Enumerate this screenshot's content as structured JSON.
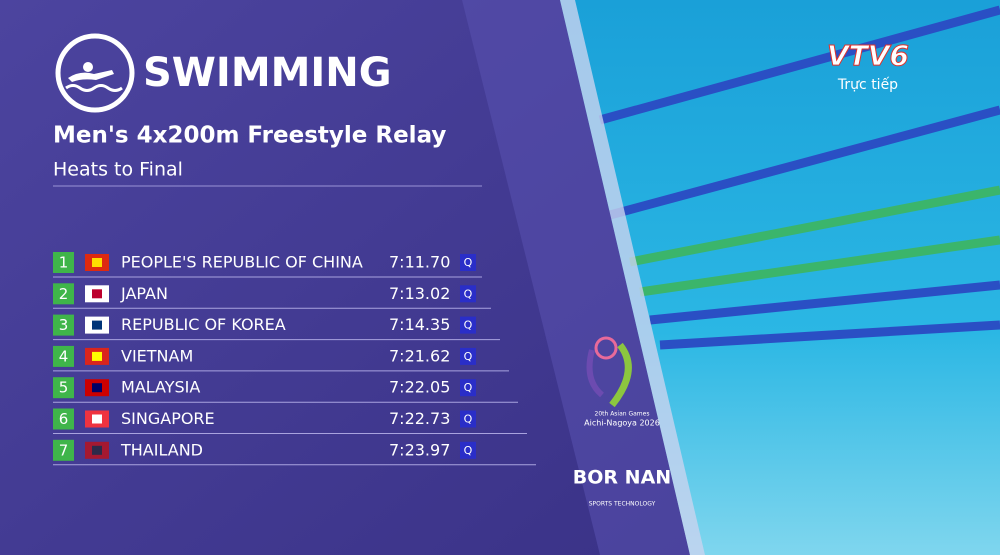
{
  "header": {
    "sport": "SWIMMING",
    "event": "Men's 4x200m Freestyle Relay",
    "phase": "Heats to Final"
  },
  "results": [
    {
      "rank": 1,
      "country": "PEOPLE'S REPUBLIC OF CHINA",
      "time": "7:11.70",
      "qualification": "Q"
    },
    {
      "rank": 2,
      "country": "JAPAN",
      "time": "7:13.02",
      "qualification": "Q"
    },
    {
      "rank": 3,
      "country": "REPUBLIC OF KOREA",
      "time": "7:14.35",
      "qualification": "Q"
    },
    {
      "rank": 4,
      "country": "VIETNAM",
      "time": "7:21.62",
      "qualification": "Q"
    },
    {
      "rank": 5,
      "country": "MALAYSIA",
      "time": "7:22.05",
      "qualification": "Q"
    },
    {
      "rank": 6,
      "country": "SINGAPORE",
      "time": "7:22.73",
      "qualification": "Q"
    },
    {
      "rank": 7,
      "country": "THAILAND",
      "time": "7:23.97",
      "qualification": "Q"
    }
  ],
  "channel": {
    "name": "VTV6",
    "status": "Trực tiếp"
  },
  "games_logo": {
    "edition": "20th Asian Games",
    "host": "Aichi-Nagoya 2026"
  },
  "sponsor": {
    "name": "BOR NAN",
    "tagline": "SPORTS TECHNOLOGY"
  }
}
